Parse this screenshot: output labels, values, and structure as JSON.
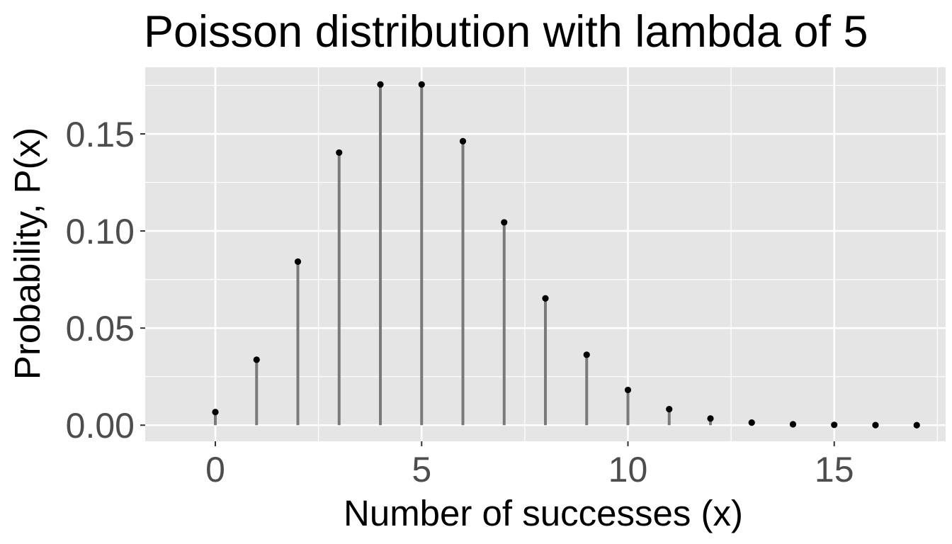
{
  "chart_data": {
    "type": "scatter",
    "title": "Poisson distribution with lambda of 5",
    "xlabel": "Number of successes (x)",
    "ylabel": "Probability, P(x)",
    "x": [
      0,
      1,
      2,
      3,
      4,
      5,
      6,
      7,
      8,
      9,
      10,
      11,
      12,
      13,
      14,
      15,
      16,
      17
    ],
    "values": [
      0.00674,
      0.03369,
      0.08422,
      0.14037,
      0.17547,
      0.17547,
      0.14622,
      0.10444,
      0.06528,
      0.03627,
      0.01813,
      0.00824,
      0.00343,
      0.00132,
      0.00047,
      0.00016,
      5e-05,
      1e-05
    ],
    "xlim": [
      -1.7,
      17.7
    ],
    "ylim": [
      -0.0083,
      0.1843
    ],
    "x_ticks": [
      "0",
      "5",
      "10",
      "15"
    ],
    "y_ticks": [
      "0.00",
      "0.05",
      "0.10",
      "0.15"
    ],
    "grid": true,
    "colors": {
      "panel": "#e5e5e5",
      "grid": "#ffffff",
      "stem": "#7a7a7a",
      "point": "#000000"
    }
  }
}
